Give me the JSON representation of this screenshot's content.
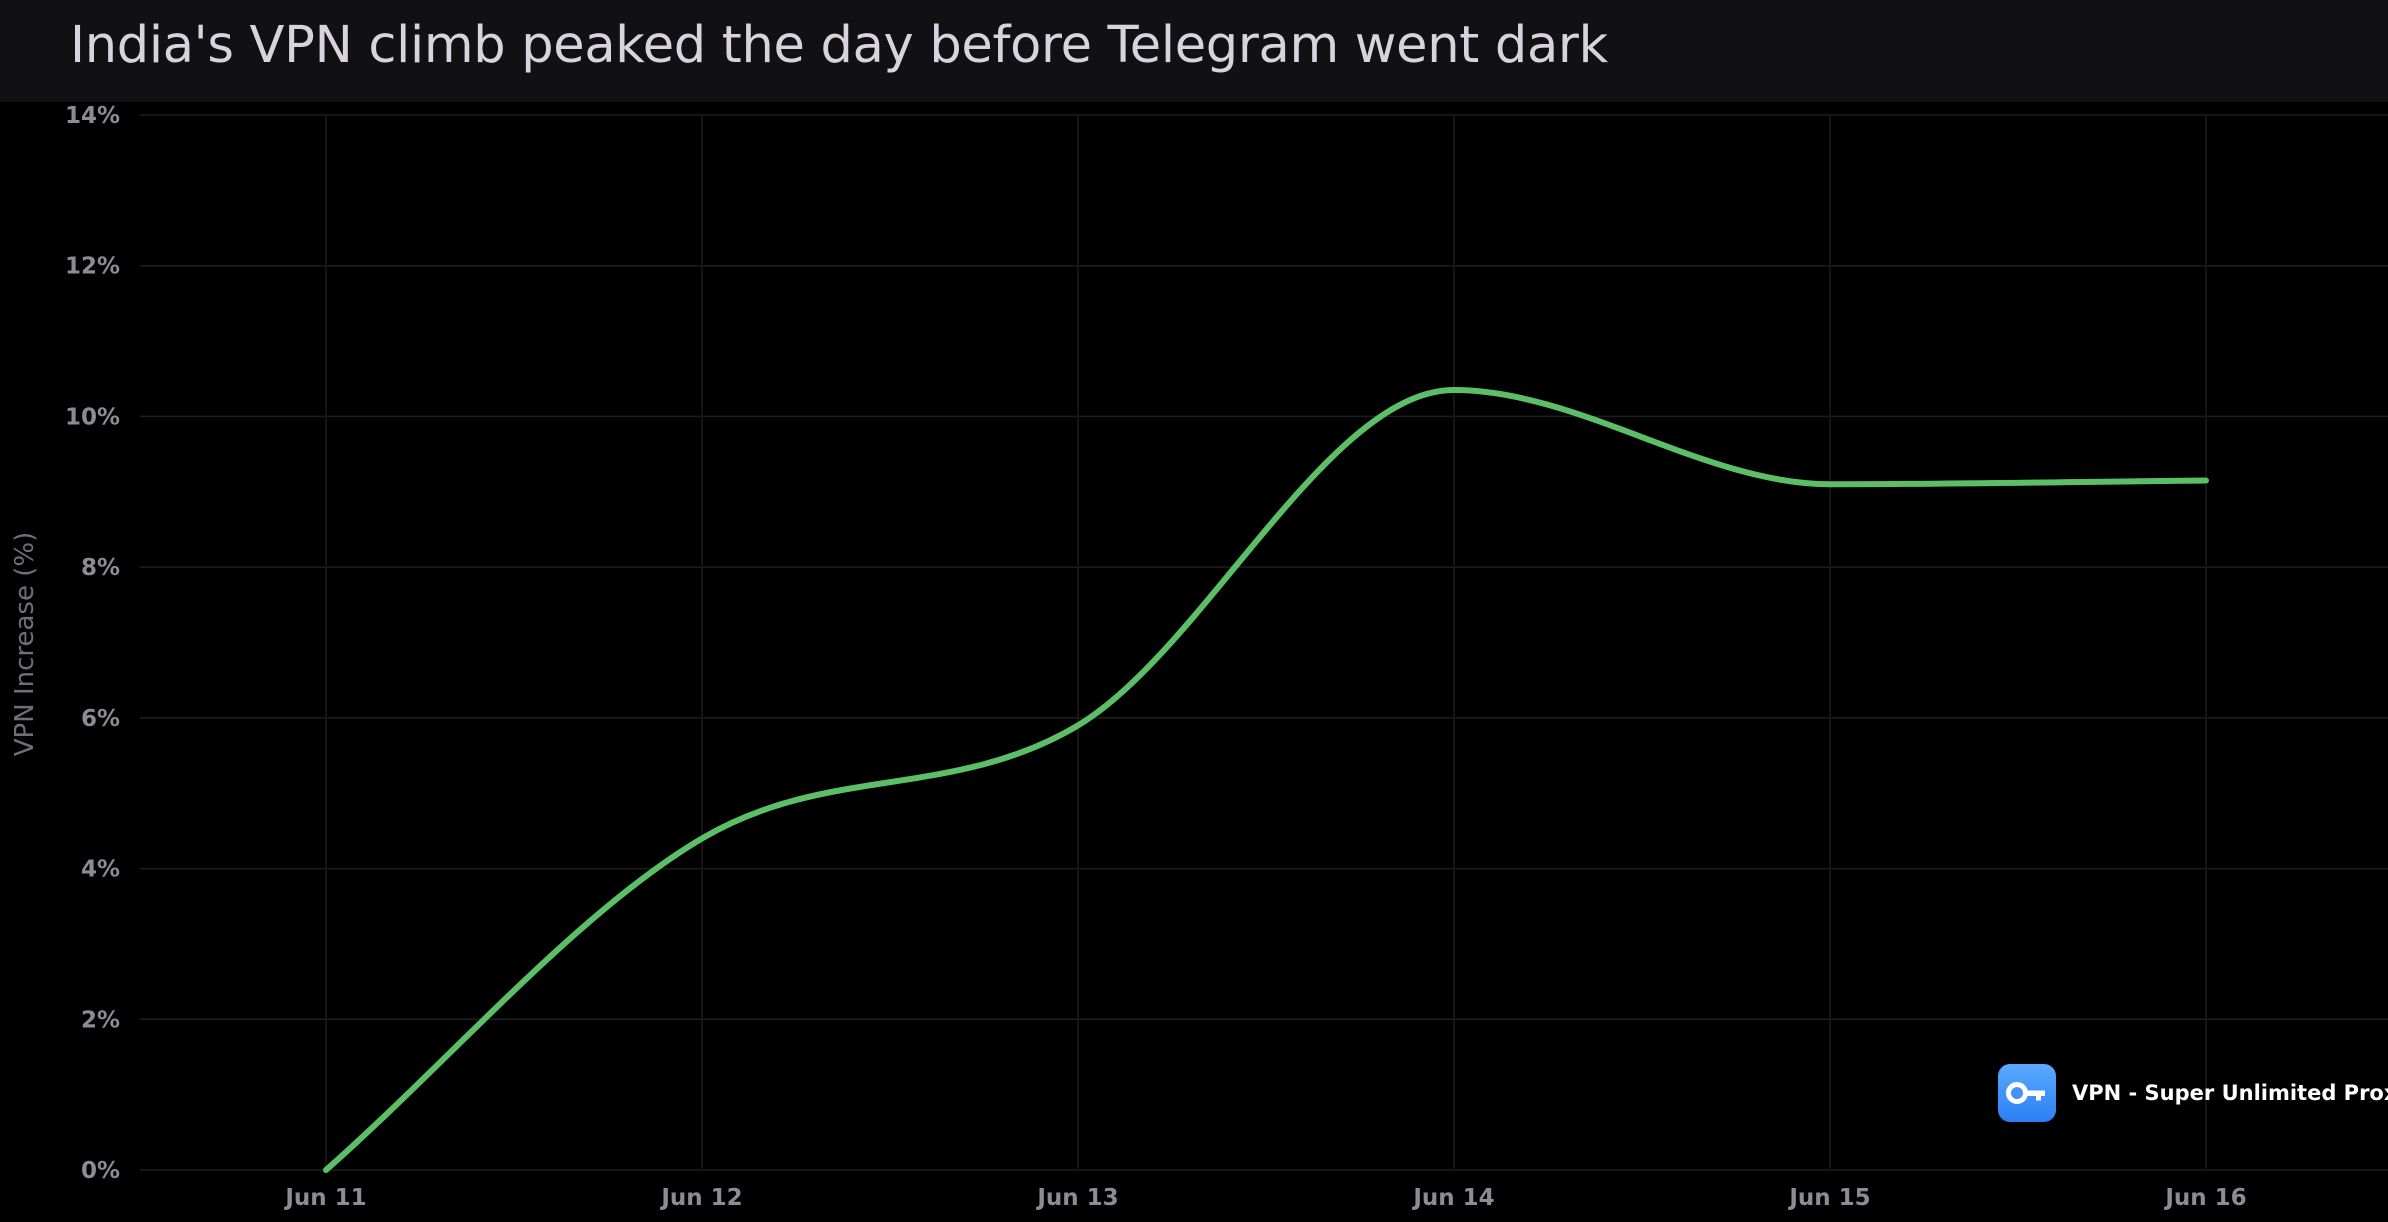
{
  "header": {
    "title": "India's VPN climb peaked the day before Telegram went dark"
  },
  "badge": {
    "label": "VPN - Super Unlimited Proxy",
    "icon": "key-icon",
    "color": "#3b8ef9"
  },
  "chart_data": {
    "type": "line",
    "title": "India's VPN climb peaked the day before Telegram went dark",
    "xlabel": "",
    "ylabel": "VPN Increase (%)",
    "categories": [
      "Jun 11",
      "Jun 12",
      "Jun 13",
      "Jun 14",
      "Jun 15",
      "Jun 16"
    ],
    "x": [
      "2025-06-11",
      "2025-06-12",
      "2025-06-13",
      "2025-06-14",
      "2025-06-15",
      "2025-06-16"
    ],
    "ylim": [
      0,
      14
    ],
    "yticks": [
      0,
      2,
      4,
      6,
      8,
      10,
      12,
      14
    ],
    "ytick_labels": [
      "0%",
      "2%",
      "4%",
      "6%",
      "8%",
      "10%",
      "12%",
      "14%"
    ],
    "grid": true,
    "legend": "none",
    "series": [
      {
        "color": "#5cbf67",
        "values": [
          0.0,
          4.4,
          5.9,
          10.35,
          9.1,
          9.15
        ]
      }
    ]
  }
}
